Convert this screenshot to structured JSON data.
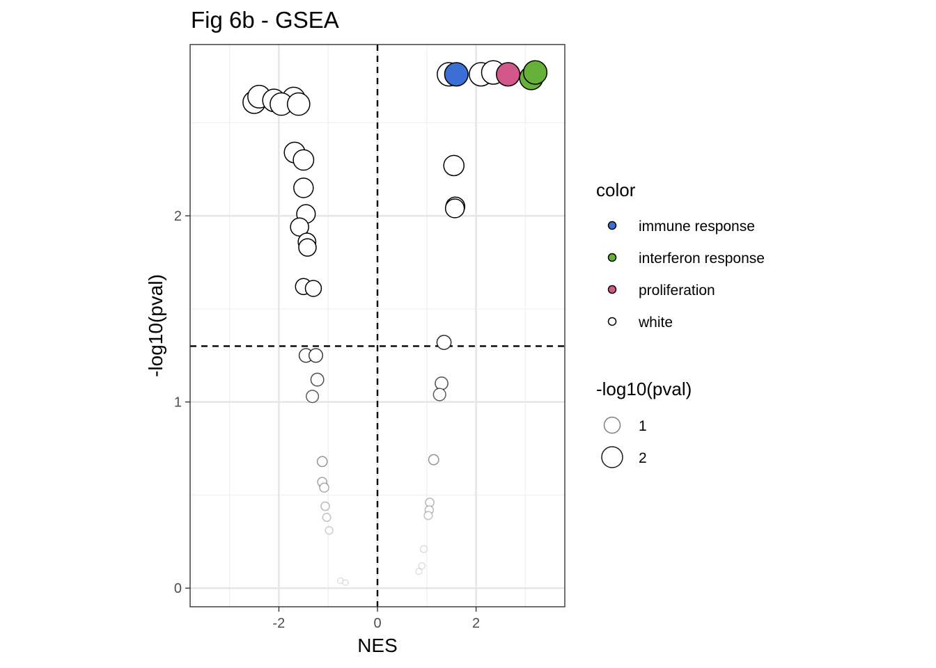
{
  "chart_data": {
    "type": "scatter",
    "title": "Fig 6b - GSEA",
    "xlabel": "NES",
    "ylabel": "-log10(pval)",
    "xlim": [
      -3.8,
      3.8
    ],
    "ylim": [
      -0.1,
      2.92
    ],
    "x_ticks": [
      -2,
      0,
      2
    ],
    "x_tick_labels": [
      "-2",
      "0",
      "2"
    ],
    "y_ticks": [
      0,
      1,
      2
    ],
    "y_tick_labels": [
      "0",
      "1",
      "2"
    ],
    "grid": true,
    "reference_lines": {
      "vertical_x": 0,
      "horizontal_y": 1.3,
      "style": "dashed"
    },
    "colors": {
      "immune response": "#3b6fd6",
      "interferon response": "#66b13a",
      "proliferation": "#d2588c",
      "white": "#ffffff"
    },
    "legend": {
      "placement": "right",
      "color_title": "color",
      "color_entries": [
        "immune response",
        "interferon response",
        "proliferation",
        "white"
      ],
      "size_title": "-log10(pval)",
      "size_entries": [
        "1",
        "2"
      ]
    },
    "points": [
      {
        "x": 1.45,
        "y": 2.76,
        "color": "white"
      },
      {
        "x": 1.6,
        "y": 2.76,
        "color": "immune response"
      },
      {
        "x": 2.1,
        "y": 2.76,
        "color": "white"
      },
      {
        "x": 2.35,
        "y": 2.77,
        "color": "white"
      },
      {
        "x": 2.65,
        "y": 2.76,
        "color": "proliferation"
      },
      {
        "x": 3.12,
        "y": 2.74,
        "color": "interferon response"
      },
      {
        "x": 3.2,
        "y": 2.77,
        "color": "interferon response"
      },
      {
        "x": -2.5,
        "y": 2.61,
        "color": "white"
      },
      {
        "x": -2.4,
        "y": 2.64,
        "color": "white"
      },
      {
        "x": -2.1,
        "y": 2.62,
        "color": "white"
      },
      {
        "x": -1.7,
        "y": 2.63,
        "color": "white"
      },
      {
        "x": -1.95,
        "y": 2.6,
        "color": "white"
      },
      {
        "x": -1.6,
        "y": 2.6,
        "color": "white"
      },
      {
        "x": -1.68,
        "y": 2.34,
        "color": "white"
      },
      {
        "x": -1.5,
        "y": 2.3,
        "color": "white"
      },
      {
        "x": -1.5,
        "y": 2.15,
        "color": "white"
      },
      {
        "x": -1.45,
        "y": 2.01,
        "color": "white"
      },
      {
        "x": -1.58,
        "y": 1.94,
        "color": "white"
      },
      {
        "x": -1.43,
        "y": 1.86,
        "color": "white"
      },
      {
        "x": -1.42,
        "y": 1.83,
        "color": "white"
      },
      {
        "x": -1.5,
        "y": 1.62,
        "color": "white"
      },
      {
        "x": -1.3,
        "y": 1.61,
        "color": "white"
      },
      {
        "x": 1.55,
        "y": 2.27,
        "color": "white"
      },
      {
        "x": 1.58,
        "y": 2.05,
        "color": "white"
      },
      {
        "x": 1.57,
        "y": 2.04,
        "color": "white"
      },
      {
        "x": 1.35,
        "y": 1.32,
        "color": "white"
      },
      {
        "x": -1.45,
        "y": 1.25,
        "color": "white"
      },
      {
        "x": -1.25,
        "y": 1.25,
        "color": "white"
      },
      {
        "x": -1.22,
        "y": 1.12,
        "color": "white"
      },
      {
        "x": -1.32,
        "y": 1.03,
        "color": "white"
      },
      {
        "x": 1.3,
        "y": 1.1,
        "color": "white"
      },
      {
        "x": 1.26,
        "y": 1.04,
        "color": "white"
      },
      {
        "x": -1.12,
        "y": 0.68,
        "color": "white"
      },
      {
        "x": -1.12,
        "y": 0.57,
        "color": "white"
      },
      {
        "x": -1.08,
        "y": 0.54,
        "color": "white"
      },
      {
        "x": -1.06,
        "y": 0.44,
        "color": "white"
      },
      {
        "x": -1.03,
        "y": 0.38,
        "color": "white"
      },
      {
        "x": -0.98,
        "y": 0.31,
        "color": "white"
      },
      {
        "x": 1.14,
        "y": 0.69,
        "color": "white"
      },
      {
        "x": 1.06,
        "y": 0.46,
        "color": "white"
      },
      {
        "x": 1.05,
        "y": 0.42,
        "color": "white"
      },
      {
        "x": 1.03,
        "y": 0.39,
        "color": "white"
      },
      {
        "x": 0.94,
        "y": 0.21,
        "color": "white"
      },
      {
        "x": 0.9,
        "y": 0.12,
        "color": "white"
      },
      {
        "x": 0.84,
        "y": 0.09,
        "color": "white"
      },
      {
        "x": -0.75,
        "y": 0.04,
        "color": "white"
      },
      {
        "x": -0.65,
        "y": 0.03,
        "color": "white"
      }
    ]
  }
}
